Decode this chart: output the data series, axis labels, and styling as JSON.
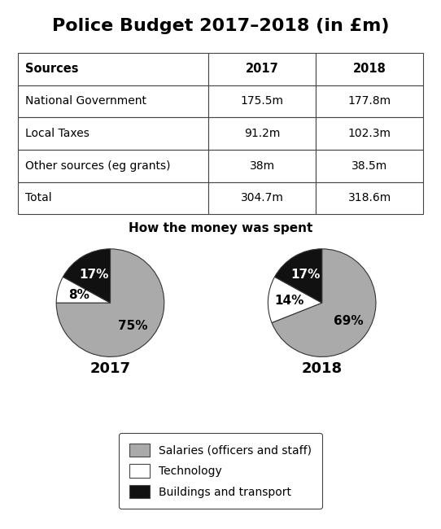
{
  "title": "Police Budget 2017–2018 (in £m)",
  "table": {
    "col_headers": [
      "Sources",
      "2017",
      "2018"
    ],
    "rows": [
      [
        "National Government",
        "175.5m",
        "177.8m"
      ],
      [
        "Local Taxes",
        "91.2m",
        "102.3m"
      ],
      [
        "Other sources (eg grants)",
        "38m",
        "38.5m"
      ],
      [
        "Total",
        "304.7m",
        "318.6m"
      ]
    ]
  },
  "pie_title": "How the money was spent",
  "pie_2017": {
    "label": "2017",
    "values": [
      75,
      8,
      17
    ],
    "colors": [
      "#aaaaaa",
      "#ffffff",
      "#111111"
    ],
    "labels": [
      "75%",
      "8%",
      "17%"
    ],
    "startangle": 90
  },
  "pie_2018": {
    "label": "2018",
    "values": [
      69,
      14,
      17
    ],
    "colors": [
      "#aaaaaa",
      "#ffffff",
      "#111111"
    ],
    "labels": [
      "69%",
      "14%",
      "17%"
    ],
    "startangle": 90
  },
  "legend_items": [
    {
      "label": "Salaries (officers and staff)",
      "color": "#aaaaaa"
    },
    {
      "label": "Technology",
      "color": "#ffffff"
    },
    {
      "label": "Buildings and transport",
      "color": "#111111"
    }
  ],
  "bg_color": "#ffffff",
  "title_fontsize": 16,
  "pie_title_fontsize": 11,
  "table_fontsize": 10,
  "label_fontsize": 11,
  "year_fontsize": 13,
  "legend_fontsize": 10
}
